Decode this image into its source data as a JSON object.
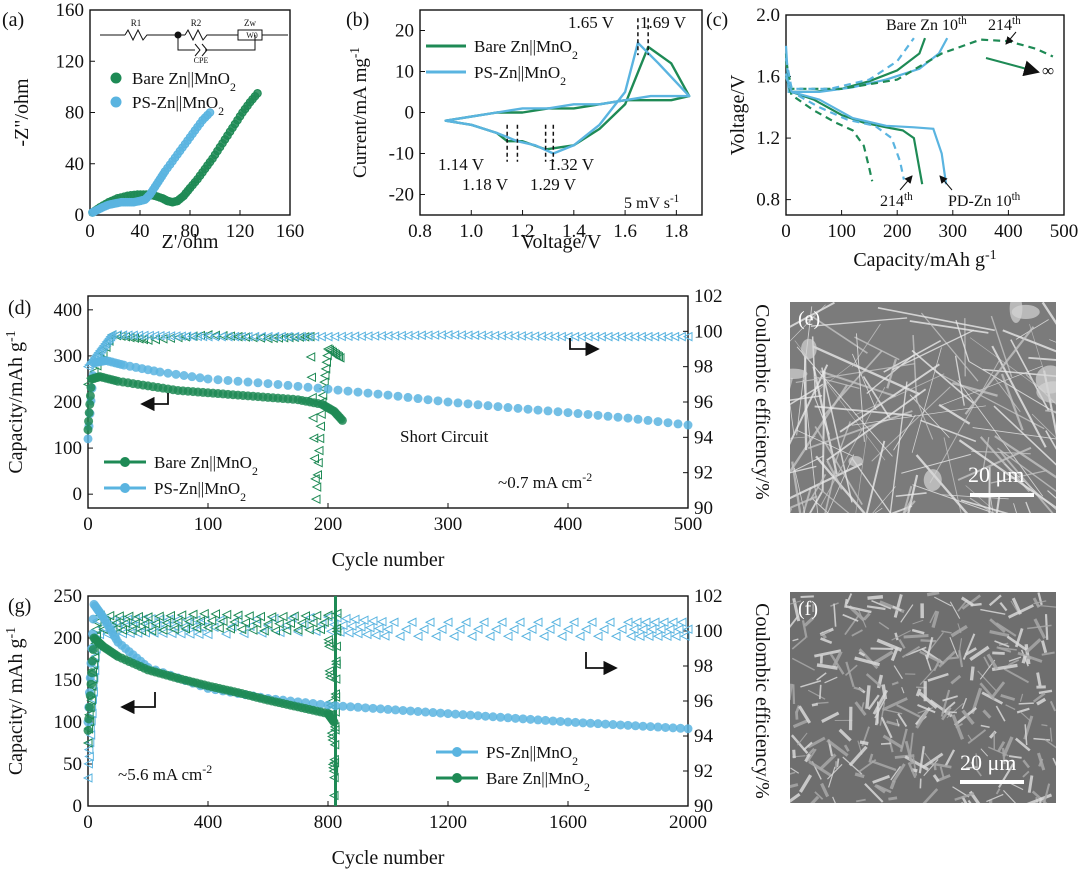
{
  "colors": {
    "green": "#1e8a55",
    "blue": "#5ab4e0",
    "dark": "#111111"
  },
  "panels": {
    "a": {
      "label": "(a)",
      "xlabel": "Z'/ohm",
      "ylabel": "-Z\"/ohm",
      "xlim": [
        0,
        160
      ],
      "ylim": [
        0,
        160
      ],
      "xticks": [
        "0",
        "40",
        "80",
        "120",
        "160"
      ],
      "yticks": [
        "0",
        "40",
        "80",
        "120",
        "160"
      ],
      "circuit": {
        "r1": "R1",
        "r2": "R2",
        "zw": "Zw",
        "cpe": "CPE",
        "w0": "W0"
      },
      "legend": [
        "Bare Zn||MnO2",
        "PS-Zn||MnO2"
      ]
    },
    "b": {
      "label": "(b)",
      "xlabel": "Voltage/V",
      "ylabel": "Current/mA mg-1",
      "xlim": [
        0.8,
        1.9
      ],
      "ylim": [
        -25,
        25
      ],
      "xticks": [
        "0.8",
        "1.0",
        "1.2",
        "1.4",
        "1.6",
        "1.8"
      ],
      "yticks": [
        "-20",
        "-10",
        "0",
        "10",
        "20"
      ],
      "legend": [
        "Bare Zn||MnO2",
        "PS-Zn||MnO2"
      ],
      "annotations": {
        "peak_blue_ox": "1.65 V",
        "peak_green_ox": "1.69 V",
        "red_green_1": "1.14 V",
        "red_blue_1": "1.18 V",
        "red_blue_2": "1.32 V",
        "red_green_2": "1.29 V",
        "rate": "5 mV s-1"
      }
    },
    "c": {
      "label": "(c)",
      "xlabel": "Capacity/mAh g-1",
      "ylabel": "Voltage/V",
      "xlim": [
        0,
        500
      ],
      "ylim": [
        0.7,
        2.0
      ],
      "xticks": [
        "0",
        "100",
        "200",
        "300",
        "400",
        "500"
      ],
      "yticks": [
        "0.8",
        "1.2",
        "1.6",
        "2.0"
      ],
      "annotations": {
        "bare10": "Bare Zn 10th",
        "g214": "214th",
        "b214": "214th",
        "pd10": "PD-Zn 10th",
        "inf": "∞"
      }
    },
    "d": {
      "label": "(d)",
      "xlabel": "Cycle number",
      "ylabel": "Capacity/mAh g-1",
      "y2label": "Coulombic efficiency/%",
      "xlim": [
        0,
        500
      ],
      "ylim": [
        -30,
        430
      ],
      "y2lim": [
        90,
        102
      ],
      "xticks": [
        "0",
        "100",
        "200",
        "300",
        "400",
        "500"
      ],
      "yticks": [
        "0",
        "100",
        "200",
        "300",
        "400"
      ],
      "y2ticks": [
        "90",
        "92",
        "94",
        "96",
        "98",
        "100",
        "102"
      ],
      "legend": [
        "Bare Zn||MnO2",
        "PS-Zn||MnO2"
      ],
      "annotations": {
        "short": "Short Circuit",
        "current": "~0.7 mA cm-2"
      }
    },
    "g": {
      "label": "(g)",
      "xlabel": "Cycle number",
      "ylabel": "Capacity/ mAh g-1",
      "y2label": "Coulombic efficiency/%",
      "xlim": [
        0,
        2000
      ],
      "ylim": [
        0,
        250
      ],
      "y2lim": [
        90,
        102
      ],
      "xticks": [
        "0",
        "400",
        "800",
        "1200",
        "1600",
        "2000"
      ],
      "yticks": [
        "0",
        "50",
        "100",
        "150",
        "200",
        "250"
      ],
      "y2ticks": [
        "90",
        "92",
        "94",
        "96",
        "98",
        "100",
        "102"
      ],
      "legend": [
        "PS-Zn||MnO2",
        "Bare Zn||MnO2"
      ],
      "annotations": {
        "current": "~5.6 mA cm-2"
      }
    },
    "e": {
      "label": "(e)",
      "scale": "20 μm"
    },
    "f": {
      "label": "(f)",
      "scale": "20 μm"
    }
  },
  "chart_data": [
    {
      "type": "scatter",
      "panel": "a",
      "xlabel": "Z'/ohm",
      "ylabel": "-Z\"/ohm",
      "xlim": [
        0,
        160
      ],
      "ylim": [
        0,
        160
      ],
      "series": [
        {
          "name": "Bare Zn||MnO2",
          "x": [
            2,
            8,
            15,
            22,
            30,
            38,
            45,
            52,
            58,
            62,
            66,
            70,
            75,
            80,
            86,
            92,
            98,
            104,
            110,
            116,
            122,
            128,
            134
          ],
          "y": [
            2,
            6,
            10,
            13,
            15,
            16,
            16,
            15,
            13,
            11,
            10,
            11,
            15,
            21,
            28,
            36,
            44,
            53,
            62,
            71,
            80,
            88,
            95
          ]
        },
        {
          "name": "PS-Zn||MnO2",
          "x": [
            2,
            6,
            10,
            15,
            20,
            25,
            30,
            35,
            40,
            44,
            48,
            52,
            56,
            60,
            66,
            72,
            78,
            84,
            90,
            96
          ],
          "y": [
            2,
            4,
            6,
            8,
            9,
            10,
            10,
            10,
            11,
            12,
            16,
            22,
            28,
            34,
            42,
            50,
            58,
            66,
            74,
            80
          ]
        }
      ]
    },
    {
      "type": "line",
      "panel": "b",
      "xlabel": "Voltage/V",
      "ylabel": "Current/mA mg-1",
      "xlim": [
        0.8,
        1.9
      ],
      "ylim": [
        -25,
        25
      ],
      "series": [
        {
          "name": "Bare Zn||MnO2",
          "x": [
            0.9,
            1.0,
            1.1,
            1.14,
            1.2,
            1.29,
            1.4,
            1.5,
            1.6,
            1.69,
            1.78,
            1.85,
            1.78,
            1.7,
            1.6,
            1.5,
            1.4,
            1.3,
            1.2,
            1.1,
            1.0,
            0.9
          ],
          "y": [
            -2,
            -3,
            -5,
            -7,
            -7,
            -9,
            -8,
            -4,
            2,
            16,
            12,
            4,
            3,
            3,
            3,
            2,
            1,
            1,
            0,
            0,
            -1,
            -2
          ]
        },
        {
          "name": "PS-Zn||MnO2",
          "x": [
            0.9,
            1.0,
            1.1,
            1.18,
            1.25,
            1.32,
            1.4,
            1.5,
            1.6,
            1.65,
            1.73,
            1.85,
            1.78,
            1.7,
            1.6,
            1.5,
            1.4,
            1.3,
            1.2,
            1.1,
            1.0,
            0.9
          ],
          "y": [
            -2,
            -3,
            -5,
            -7,
            -8,
            -10,
            -8,
            -3,
            5,
            17,
            12,
            4,
            4,
            4,
            3,
            2,
            2,
            1,
            1,
            0,
            -1,
            -2
          ]
        }
      ]
    },
    {
      "type": "line",
      "panel": "c",
      "xlabel": "Capacity/mAh g-1",
      "ylabel": "Voltage/V",
      "xlim": [
        0,
        500
      ],
      "ylim": [
        0.7,
        2.0
      ],
      "series": [
        {
          "name": "Bare Zn 10th",
          "style": "solid",
          "color": "green",
          "x": [
            0,
            5,
            50,
            100,
            150,
            200,
            240,
            250
          ],
          "y": [
            1.75,
            1.5,
            1.5,
            1.52,
            1.57,
            1.64,
            1.75,
            1.85
          ]
        },
        {
          "name": "Bare Zn 10th discharge",
          "style": "solid",
          "color": "green",
          "x": [
            0,
            10,
            50,
            100,
            140,
            180,
            210,
            230,
            240,
            245
          ],
          "y": [
            1.6,
            1.5,
            1.45,
            1.35,
            1.3,
            1.27,
            1.25,
            1.2,
            1.0,
            0.9
          ]
        },
        {
          "name": "PD-Zn 10th",
          "style": "solid",
          "color": "blue",
          "x": [
            0,
            5,
            60,
            120,
            180,
            240,
            275,
            290
          ],
          "y": [
            1.8,
            1.5,
            1.5,
            1.53,
            1.58,
            1.65,
            1.75,
            1.85
          ]
        },
        {
          "name": "PD-Zn 10th discharge",
          "style": "solid",
          "color": "blue",
          "x": [
            0,
            10,
            60,
            120,
            180,
            230,
            265,
            280,
            288
          ],
          "y": [
            1.62,
            1.5,
            1.45,
            1.33,
            1.28,
            1.27,
            1.26,
            1.1,
            0.9
          ]
        },
        {
          "name": "Bare Zn 214th",
          "style": "dashed",
          "color": "green",
          "x": [
            0,
            10,
            100,
            200,
            280,
            350,
            400,
            450,
            480
          ],
          "y": [
            1.7,
            1.52,
            1.52,
            1.58,
            1.75,
            1.84,
            1.83,
            1.78,
            1.73
          ]
        },
        {
          "name": "Bare Zn 214th discharge",
          "style": "dashed",
          "color": "green",
          "x": [
            0,
            10,
            50,
            90,
            120,
            140,
            150,
            155
          ],
          "y": [
            1.6,
            1.48,
            1.38,
            1.3,
            1.25,
            1.15,
            1.0,
            0.92
          ]
        },
        {
          "name": "PD-Zn 214th",
          "style": "dashed",
          "color": "blue",
          "x": [
            0,
            10,
            80,
            150,
            200,
            230
          ],
          "y": [
            1.72,
            1.52,
            1.52,
            1.58,
            1.7,
            1.85
          ]
        },
        {
          "name": "PD-Zn 214th discharge",
          "style": "dashed",
          "color": "blue",
          "x": [
            0,
            10,
            60,
            110,
            160,
            190,
            205,
            212
          ],
          "y": [
            1.6,
            1.5,
            1.4,
            1.32,
            1.28,
            1.2,
            1.05,
            0.93
          ]
        }
      ]
    },
    {
      "type": "scatter",
      "panel": "d",
      "xlabel": "Cycle number",
      "ylabel": "Capacity/mAh g-1",
      "y2label": "Coulombic efficiency/%",
      "xlim": [
        0,
        500
      ],
      "ylim": [
        -30,
        430
      ],
      "y2lim": [
        90,
        102
      ],
      "series": [
        {
          "name": "Bare Zn||MnO2",
          "axis": "left",
          "x": [
            0,
            3,
            10,
            25,
            50,
            75,
            100,
            125,
            150,
            175,
            195,
            205,
            212
          ],
          "y": [
            140,
            250,
            255,
            245,
            235,
            225,
            220,
            215,
            210,
            205,
            195,
            180,
            160
          ]
        },
        {
          "name": "PS-Zn||MnO2",
          "axis": "left",
          "x": [
            0,
            5,
            15,
            30,
            60,
            100,
            150,
            200,
            250,
            300,
            350,
            400,
            450,
            500
          ],
          "y": [
            120,
            285,
            290,
            280,
            265,
            250,
            240,
            228,
            215,
            200,
            188,
            177,
            165,
            150
          ]
        },
        {
          "name": "Bare Zn CE",
          "axis": "right",
          "x": [
            0,
            20,
            50,
            100,
            150,
            185,
            190,
            195,
            200,
            210
          ],
          "y": [
            97,
            99.8,
            99.5,
            99.8,
            99.6,
            99.7,
            90.5,
            96,
            99,
            98.5
          ]
        },
        {
          "name": "PS-Zn CE",
          "axis": "right",
          "x": [
            0,
            20,
            100,
            200,
            300,
            400,
            500
          ],
          "y": [
            98,
            99.8,
            99.7,
            99.7,
            99.8,
            99.7,
            99.7
          ]
        }
      ]
    },
    {
      "type": "scatter",
      "panel": "g",
      "xlabel": "Cycle number",
      "ylabel": "Capacity/ mAh g-1",
      "y2label": "Coulombic efficiency/%",
      "xlim": [
        0,
        2000
      ],
      "ylim": [
        0,
        250
      ],
      "y2lim": [
        90,
        102
      ],
      "series": [
        {
          "name": "PS-Zn||MnO2",
          "axis": "left",
          "x": [
            0,
            20,
            50,
            100,
            200,
            400,
            600,
            800,
            1000,
            1200,
            1400,
            1600,
            1800,
            2000
          ],
          "y": [
            100,
            240,
            225,
            195,
            165,
            140,
            128,
            120,
            115,
            110,
            105,
            100,
            96,
            92
          ]
        },
        {
          "name": "Bare Zn||MnO2",
          "axis": "left",
          "x": [
            0,
            20,
            50,
            100,
            200,
            300,
            400,
            500,
            600,
            700,
            800,
            820
          ],
          "y": [
            90,
            200,
            190,
            178,
            162,
            152,
            143,
            135,
            126,
            118,
            110,
            100
          ]
        },
        {
          "name": "PS-Zn CE",
          "axis": "right",
          "x": [
            0,
            30,
            200,
            400,
            800,
            1000,
            1400,
            1800,
            2000
          ],
          "y": [
            92,
            100.2,
            100.3,
            100.2,
            100.4,
            100.1,
            100.1,
            100.1,
            100.1
          ]
        },
        {
          "name": "Bare Zn CE",
          "axis": "right",
          "x": [
            0,
            30,
            200,
            400,
            600,
            800,
            820,
            830
          ],
          "y": [
            94,
            100.5,
            100.4,
            100.6,
            100.4,
            100.5,
            91,
            101
          ]
        }
      ]
    }
  ]
}
